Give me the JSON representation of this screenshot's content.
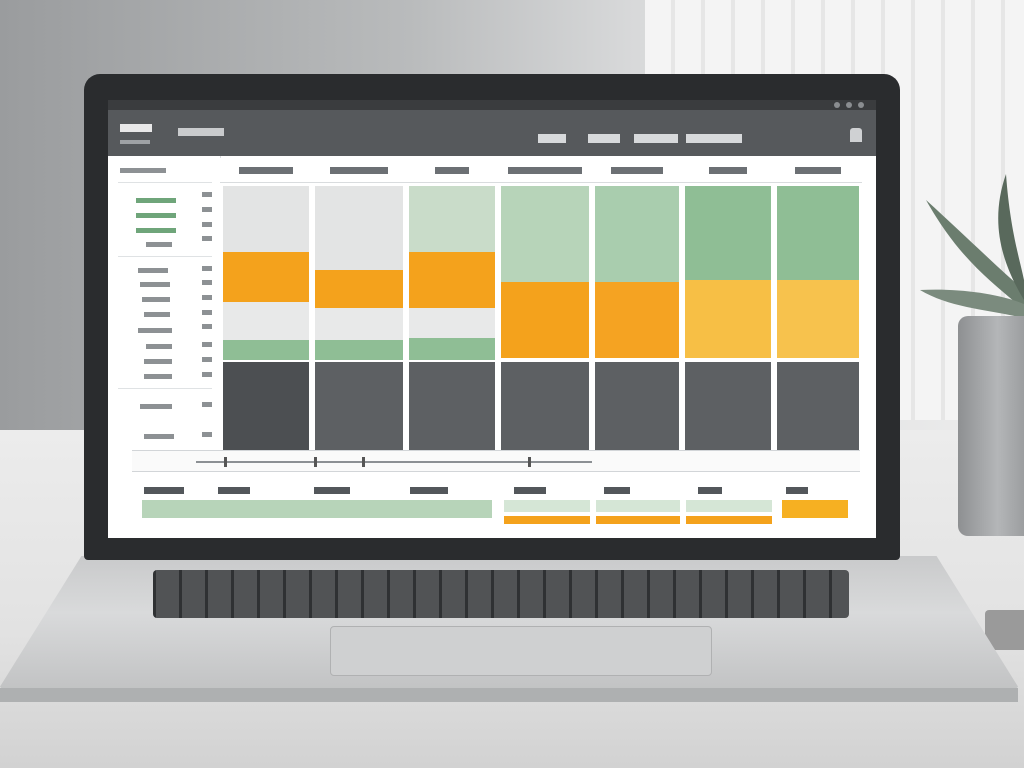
{
  "app": {
    "title": "",
    "subtitle": "",
    "breadcrumb": "",
    "tabs": [
      "",
      "",
      "",
      ""
    ]
  },
  "row_labels": {
    "header": "",
    "items": [
      {
        "label": "",
        "value": ""
      },
      {
        "label": "",
        "value": ""
      },
      {
        "label": "",
        "value": ""
      },
      {
        "label": "",
        "value": ""
      },
      {
        "label": "",
        "value": ""
      },
      {
        "label": "",
        "value": ""
      },
      {
        "label": "",
        "value": ""
      },
      {
        "label": "",
        "value": ""
      },
      {
        "label": "",
        "value": ""
      },
      {
        "label": "",
        "value": ""
      },
      {
        "label": "",
        "value": ""
      },
      {
        "label": "",
        "value": ""
      },
      {
        "label": "",
        "value": ""
      },
      {
        "label": "",
        "value": ""
      }
    ]
  },
  "columns": [
    {
      "label": "",
      "total": ""
    },
    {
      "label": "",
      "total": ""
    },
    {
      "label": "",
      "total": ""
    },
    {
      "label": "",
      "total": ""
    },
    {
      "label": "",
      "total": ""
    },
    {
      "label": "",
      "total": ""
    },
    {
      "label": "",
      "total": ""
    }
  ],
  "summary": {
    "label": ""
  },
  "colors": {
    "green": "#8fbe95",
    "green_light": "#b7d4b9",
    "orange": "#f4a21c",
    "orange_light": "#f7bf45",
    "gray_light": "#e3e4e4",
    "gray_dark": "#5d6063",
    "header": "#56595c"
  }
}
